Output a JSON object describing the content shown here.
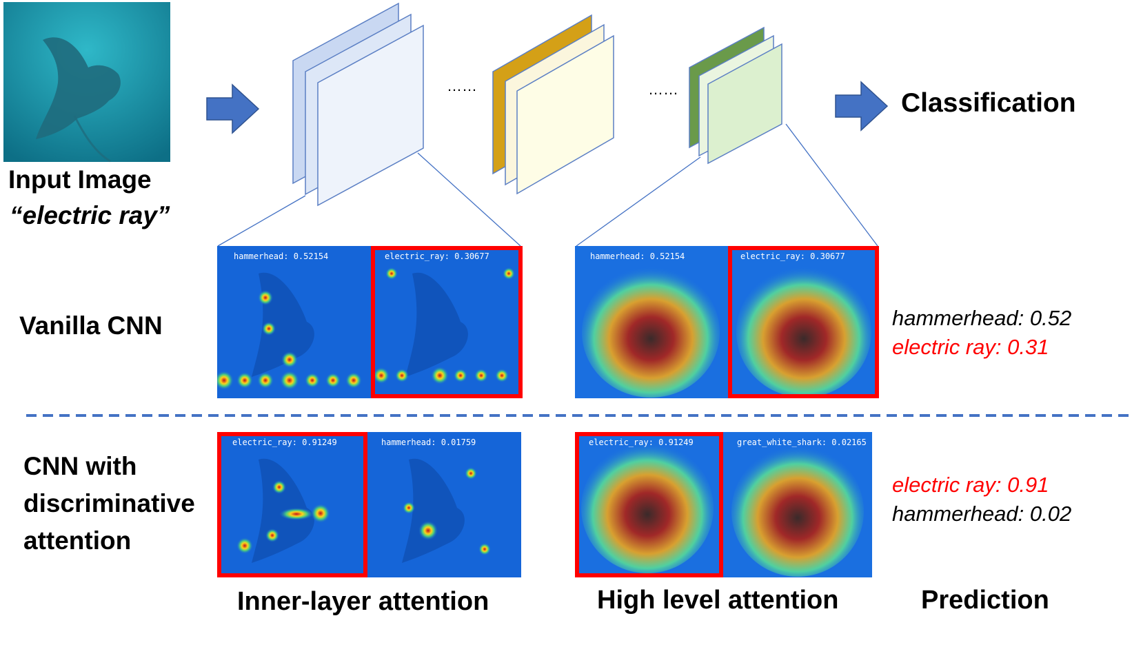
{
  "input": {
    "title": "Input Image",
    "class_label": "“electric ray”"
  },
  "pipeline": {
    "ellipsis_1": "……",
    "ellipsis_2": "……",
    "output": "Classification"
  },
  "rows": {
    "vanilla": {
      "label": "Vanilla CNN"
    },
    "discriminative": {
      "label_line1": "CNN with",
      "label_line2": "discriminative",
      "label_line3": "attention"
    }
  },
  "maps": {
    "vanilla_inner_a": "hammerhead: 0.52154",
    "vanilla_inner_b": "electric_ray: 0.30677",
    "vanilla_high_a": "hammerhead: 0.52154",
    "vanilla_high_b": "electric_ray: 0.30677",
    "disc_inner_a": "electric_ray: 0.91249",
    "disc_inner_b": "hammerhead: 0.01759",
    "disc_high_a": "electric_ray: 0.91249",
    "disc_high_b": "great_white_shark: 0.02165"
  },
  "predictions": {
    "vanilla": {
      "line1": "hammerhead: 0.52",
      "line2": "electric ray: 0.31"
    },
    "discriminative": {
      "line1": "electric ray: 0.91",
      "line2": "hammerhead: 0.02"
    }
  },
  "footer": {
    "inner": "Inner-layer attention",
    "high": "High level attention",
    "prediction": "Prediction"
  },
  "colors": {
    "arrow": "#4472c4",
    "highlight": "#ff0000",
    "correct_class": "#ff0000",
    "layer_blue": "#dae3f3",
    "layer_gold": "#d4a017",
    "layer_green": "#6a9a4a"
  },
  "icons": {
    "flow_arrow": "right-arrow-icon"
  }
}
